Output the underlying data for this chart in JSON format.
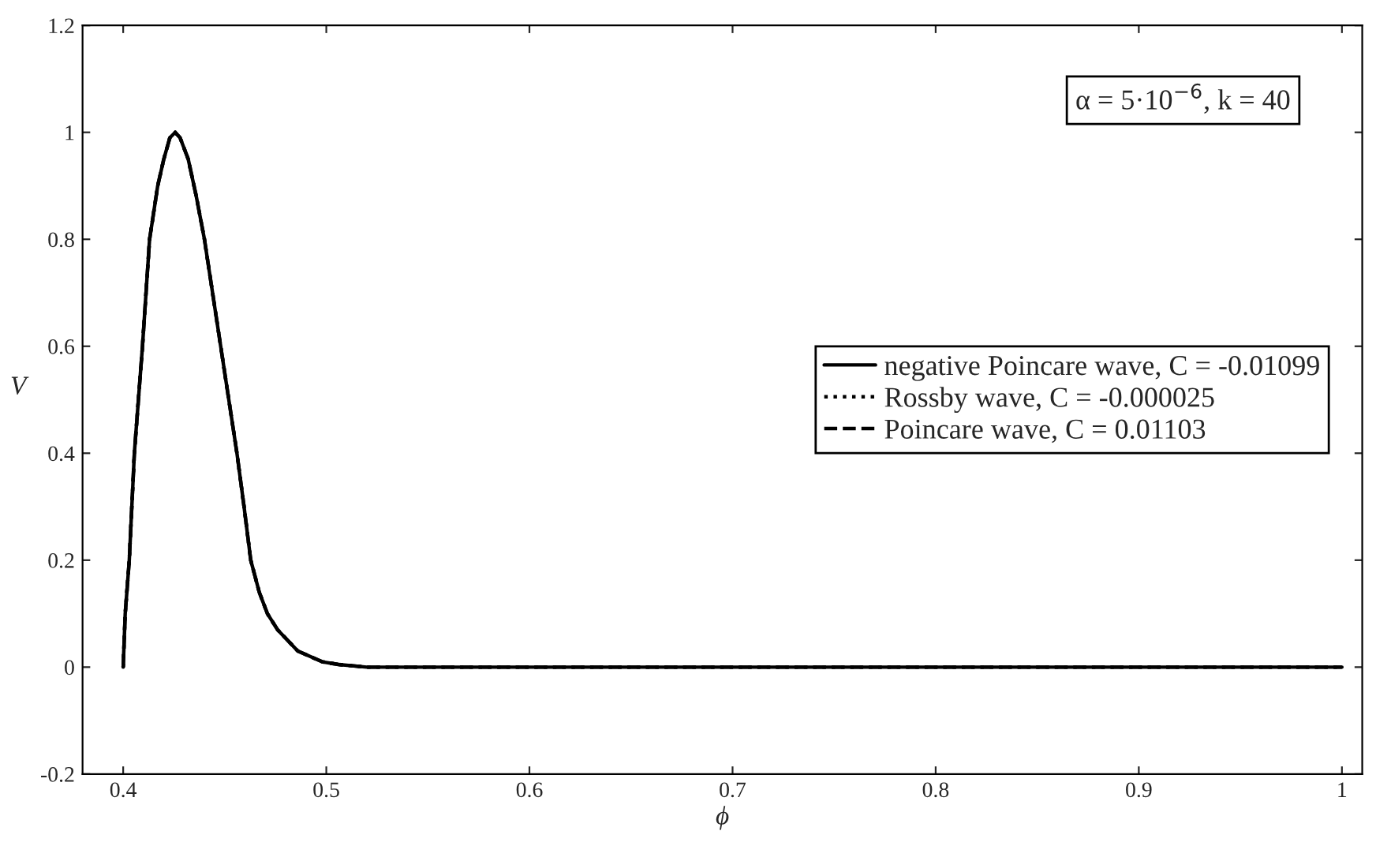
{
  "chart_data": {
    "type": "line",
    "xlabel": "ϕ",
    "ylabel": "V",
    "annotations": [
      "α = 5·10$^{−6}$, k = 40"
    ],
    "x": [
      0.4,
      0.401,
      0.403,
      0.4055,
      0.4095,
      0.413,
      0.417,
      0.42,
      0.423,
      0.4256,
      0.428,
      0.432,
      0.436,
      0.44,
      0.444,
      0.448,
      0.452,
      0.456,
      0.4595,
      0.4628,
      0.467,
      0.471,
      0.476,
      0.481,
      0.486,
      0.492,
      0.498,
      0.506,
      0.52,
      0.55,
      0.6,
      0.7,
      0.8,
      0.9,
      1
    ],
    "series": [
      {
        "name": "negative Poincare wave, C = -0.01099",
        "color": "#000000",
        "line_style": "solid",
        "values": [
          0,
          0.1,
          0.2,
          0.4,
          0.6,
          0.8,
          0.9,
          0.95,
          0.99,
          1,
          0.99,
          0.95,
          0.88,
          0.8,
          0.7,
          0.6,
          0.5,
          0.4,
          0.3,
          0.2,
          0.14,
          0.1,
          0.07,
          0.05,
          0.03,
          0.02,
          0.01,
          0.005,
          0,
          0,
          0,
          0,
          0,
          0,
          0
        ]
      },
      {
        "name": "Rossby wave, C = -0.000025",
        "color": "#000000",
        "line_style": "dotted",
        "values": [
          0,
          0.1,
          0.2,
          0.4,
          0.6,
          0.8,
          0.9,
          0.95,
          0.99,
          1,
          0.99,
          0.95,
          0.88,
          0.8,
          0.7,
          0.6,
          0.5,
          0.4,
          0.3,
          0.2,
          0.14,
          0.1,
          0.07,
          0.05,
          0.03,
          0.02,
          0.01,
          0.005,
          0,
          0,
          0,
          0,
          0,
          0,
          0
        ]
      },
      {
        "name": "Poincare wave, C = 0.01103",
        "color": "#000000",
        "line_style": "dashed",
        "values": [
          0,
          0.1,
          0.2,
          0.4,
          0.6,
          0.8,
          0.9,
          0.95,
          0.99,
          1,
          0.99,
          0.95,
          0.88,
          0.8,
          0.7,
          0.6,
          0.5,
          0.4,
          0.3,
          0.2,
          0.14,
          0.1,
          0.07,
          0.05,
          0.03,
          0.02,
          0.01,
          0.005,
          0,
          0,
          0,
          0,
          0,
          0,
          0
        ]
      }
    ],
    "xlim": [
      0.38,
      1.01
    ],
    "ylim": [
      -0.2,
      1.2
    ],
    "xticks": [
      0.4,
      0.5,
      0.6,
      0.7,
      0.8,
      0.9,
      1
    ],
    "yticks": [
      -0.2,
      0,
      0.2,
      0.4,
      0.6,
      0.8,
      1,
      1.2
    ],
    "legend": "right",
    "grid": false
  }
}
